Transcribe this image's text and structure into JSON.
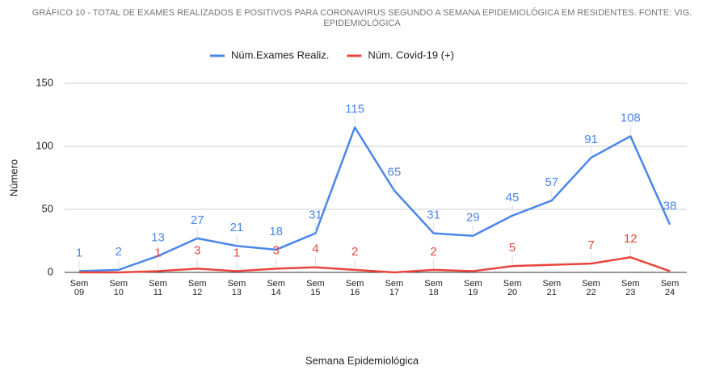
{
  "chart_data": {
    "type": "line",
    "title": "GRÁFICO 10 - TOTAL DE EXAMES REALIZADOS E POSITIVOS PARA CORONAVIRUS SEGUNDO A SEMANA EPIDEMIOLÓGICA EM RESIDENTES. FONTE: VIG. EPIDEMIOLÓGICA",
    "x_label": "Semana Epidemiológica",
    "y_label": "Número",
    "categories": [
      "Sem 09",
      "Sem 10",
      "Sem 11",
      "Sem 12",
      "Sem 13",
      "Sem 14",
      "Sem 15",
      "Sem 16",
      "Sem 17",
      "Sem 18",
      "Sem 19",
      "Sem 20",
      "Sem 21",
      "Sem 22",
      "Sem 23",
      "Sem 24"
    ],
    "series": [
      {
        "name": "Núm.Exames Realiz.",
        "color": "#4a86e8",
        "values": [
          1,
          2,
          13,
          27,
          21,
          18,
          31,
          115,
          65,
          31,
          29,
          45,
          57,
          91,
          108,
          38
        ]
      },
      {
        "name": "Núm. Covid-19 (+)",
        "color": "#e8453c",
        "values": [
          0,
          0,
          1,
          3,
          1,
          3,
          4,
          2,
          0,
          2,
          1,
          5,
          6,
          7,
          12,
          1
        ],
        "value_labels": [
          null,
          null,
          "1",
          "3",
          "1",
          "3",
          "4",
          "2",
          null,
          "2",
          null,
          "5",
          null,
          "7",
          "12",
          null
        ]
      }
    ],
    "ylim": [
      0,
      150
    ],
    "yticks": [
      0,
      50,
      100,
      150
    ],
    "grid": true,
    "legend": "top"
  }
}
